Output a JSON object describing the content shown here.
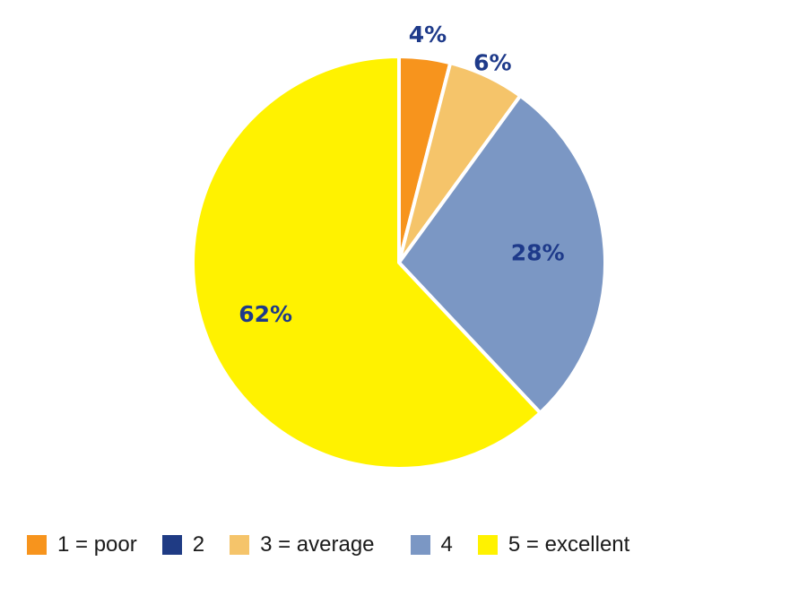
{
  "chart_data": {
    "type": "pie",
    "start_angle_deg": 0,
    "direction": "clockwise",
    "slices": [
      {
        "name": "1 = poor",
        "value": 4,
        "label": "4%",
        "color": "#f7941d"
      },
      {
        "name": "2",
        "value": 0,
        "label": "",
        "color": "#1f3b84"
      },
      {
        "name": "3 = average",
        "value": 6,
        "label": "6%",
        "color": "#f5c46a"
      },
      {
        "name": "4",
        "value": 28,
        "label": "28%",
        "color": "#7b97c4"
      },
      {
        "name": "5 = excellent",
        "value": 62,
        "label": "62%",
        "color": "#fff200"
      }
    ],
    "legend": {
      "position": "bottom",
      "entries": [
        "1 = poor",
        "2",
        "3 = average",
        "4",
        "5 = excellent"
      ]
    },
    "label_color": "#1e3a8a"
  }
}
